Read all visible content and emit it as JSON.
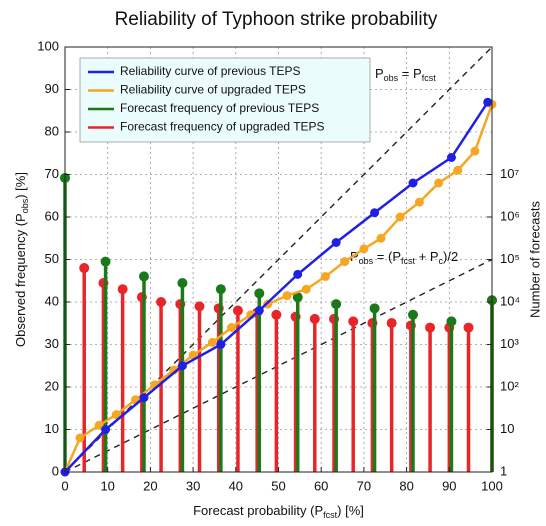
{
  "chart_data": {
    "type": "reliability",
    "title": "Reliability of Typhoon strike probability",
    "x_label": [
      "Forecast probability (P",
      "fcst",
      ") [%]"
    ],
    "y_label": [
      "Observed frequency (P",
      "obs",
      ") [%]"
    ],
    "y2_label": "Number of forecasts",
    "xlim": [
      0,
      100
    ],
    "ylim": [
      0,
      100
    ],
    "y2lim": [
      1,
      10000000000
    ],
    "y2scale": "log",
    "xticks": [
      0,
      10,
      20,
      30,
      40,
      50,
      60,
      70,
      80,
      90,
      100
    ],
    "yticks": [
      0,
      10,
      20,
      30,
      40,
      50,
      60,
      70,
      80,
      90,
      100
    ],
    "y2ticks": [
      1,
      10,
      {
        "value": 100,
        "label": "10²"
      },
      {
        "value": 1000,
        "label": "10³"
      },
      {
        "value": 10000,
        "label": "10⁴"
      },
      {
        "value": 100000,
        "label": "10⁵"
      },
      {
        "value": 1000000,
        "label": "10⁶"
      },
      {
        "value": 10000000,
        "label": "10⁷"
      }
    ],
    "grid": true,
    "legend": "upper left",
    "annotations": [
      {
        "parts": [
          "P",
          "obs",
          " = P",
          "fcst"
        ]
      },
      {
        "parts": [
          "P",
          "obs",
          " = (P",
          "fcst",
          " + P",
          "c",
          ")/2"
        ]
      }
    ],
    "series": [
      {
        "name": "Reliability curve of previous TEPS",
        "color": "#1f1fe6",
        "style": "line",
        "axis": "y",
        "x": [
          0,
          9.5,
          18.5,
          27.5,
          36.5,
          45.5,
          54.5,
          63.5,
          72.5,
          81.5,
          90.5,
          99
        ],
        "values": [
          0,
          10,
          17.5,
          25,
          30,
          38,
          46.5,
          54,
          61,
          68,
          74,
          87
        ]
      },
      {
        "name": "Reliability curve of upgraded TEPS",
        "color": "#f5a623",
        "style": "line",
        "axis": "y",
        "x": [
          0,
          3.5,
          8,
          12,
          16.5,
          21,
          25.5,
          30,
          34.5,
          39,
          43.5,
          47.5,
          52,
          56.5,
          61,
          65.5,
          70,
          74,
          78.5,
          83,
          87.5,
          92,
          96,
          100
        ],
        "values": [
          0,
          8,
          11,
          13.5,
          17,
          20.5,
          24,
          27.5,
          30.5,
          34,
          37,
          39.5,
          41.5,
          43,
          46,
          49.5,
          52.5,
          55,
          60,
          63.5,
          68,
          71,
          75.5,
          86.5
        ]
      },
      {
        "name": "Forecast frequency of previous TEPS",
        "color": "#1a7a1a",
        "style": "stem",
        "axis": "y2",
        "x": [
          0,
          9.5,
          18.5,
          27.5,
          36.5,
          45.5,
          54.5,
          63.5,
          72.5,
          81.5,
          90.5,
          100
        ],
        "values": [
          8300000,
          89000,
          40000,
          28000,
          20000,
          16000,
          13000,
          8900,
          7100,
          5000,
          3500,
          11000
        ]
      },
      {
        "name": "Forecast frequency of upgraded TEPS",
        "color": "#e8262a",
        "style": "stem",
        "axis": "y2",
        "x": [
          4.5,
          9,
          13.5,
          18,
          22.5,
          27,
          31.5,
          36,
          40.5,
          45,
          49.5,
          54,
          58.5,
          63,
          67.5,
          72,
          76.5,
          81,
          85.5,
          90,
          94.5,
          100
        ],
        "values": [
          63000,
          28000,
          20000,
          13000,
          10000,
          8900,
          7900,
          7100,
          6300,
          5600,
          5000,
          4500,
          4000,
          4000,
          3500,
          3200,
          3200,
          2800,
          2500,
          2500,
          2500,
          11000
        ]
      }
    ]
  }
}
